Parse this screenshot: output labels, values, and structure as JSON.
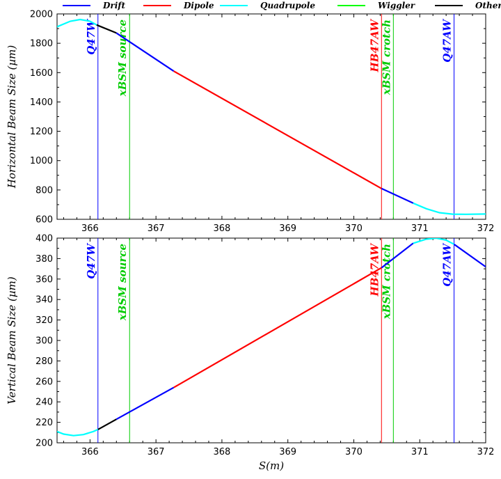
{
  "chart_data": [
    {
      "type": "line",
      "id": "top",
      "ylabel": "Horizontal Beam Size (µm)",
      "xlabel": "",
      "xlim": [
        365.5,
        372
      ],
      "ylim": [
        600,
        2000
      ],
      "xticks": [
        366,
        367,
        368,
        369,
        370,
        371,
        372
      ],
      "yticks": [
        600,
        800,
        1000,
        1200,
        1400,
        1600,
        1800,
        2000
      ],
      "legend": {
        "position": "top",
        "entries": [
          {
            "name": "Drift",
            "color": "#0000ff"
          },
          {
            "name": "Dipole",
            "color": "#ff0000"
          },
          {
            "name": "Quadrupole",
            "color": "#00ffff"
          },
          {
            "name": "Wiggler",
            "color": "#00ff00"
          },
          {
            "name": "Other",
            "color": "#000000"
          }
        ]
      },
      "segments": [
        {
          "element": "Quadrupole",
          "color": "#00ffff",
          "points": [
            [
              365.5,
              1912
            ],
            [
              365.7,
              1950
            ],
            [
              365.85,
              1962
            ],
            [
              366.0,
              1950
            ],
            [
              366.1,
              1925
            ]
          ]
        },
        {
          "element": "Other",
          "color": "#000000",
          "points": [
            [
              366.1,
              1925
            ],
            [
              366.4,
              1870
            ]
          ]
        },
        {
          "element": "Drift",
          "color": "#0000ff",
          "points": [
            [
              366.4,
              1870
            ],
            [
              367.27,
              1610
            ]
          ]
        },
        {
          "element": "Dipole",
          "color": "#ff0000",
          "points": [
            [
              367.27,
              1610
            ],
            [
              370.42,
              810
            ]
          ]
        },
        {
          "element": "Drift",
          "color": "#0000ff",
          "points": [
            [
              370.42,
              810
            ],
            [
              370.9,
              710
            ]
          ]
        },
        {
          "element": "Quadrupole",
          "color": "#00ffff",
          "points": [
            [
              370.9,
              710
            ],
            [
              371.1,
              672
            ],
            [
              371.3,
              645
            ],
            [
              371.5,
              635
            ],
            [
              371.7,
              634
            ],
            [
              372.0,
              636
            ]
          ]
        }
      ],
      "markers": [
        {
          "label": "Q47W",
          "x": 366.12,
          "color": "#0000ff"
        },
        {
          "label": "xBSM source",
          "x": 366.6,
          "color": "#00cc00"
        },
        {
          "label": "HB47AW",
          "x": 370.42,
          "color": "#ff0000"
        },
        {
          "label": "xBSM crotch",
          "x": 370.6,
          "color": "#00cc00"
        },
        {
          "label": "Q47AW",
          "x": 371.52,
          "color": "#0000ff"
        }
      ]
    },
    {
      "type": "line",
      "id": "bottom",
      "ylabel": "Vertical Beam Size (µm)",
      "xlabel": "S(m)",
      "xlim": [
        365.5,
        372
      ],
      "ylim": [
        200,
        400
      ],
      "xticks": [
        366,
        367,
        368,
        369,
        370,
        371,
        372
      ],
      "yticks": [
        200,
        220,
        240,
        260,
        280,
        300,
        320,
        340,
        360,
        380,
        400
      ],
      "segments": [
        {
          "element": "Quadrupole",
          "color": "#00ffff",
          "points": [
            [
              365.5,
              211
            ],
            [
              365.6,
              208.5
            ],
            [
              365.75,
              207
            ],
            [
              365.9,
              208
            ],
            [
              366.05,
              211
            ],
            [
              366.12,
              213
            ]
          ]
        },
        {
          "element": "Other",
          "color": "#000000",
          "points": [
            [
              366.12,
              213
            ],
            [
              366.4,
              223
            ]
          ]
        },
        {
          "element": "Drift",
          "color": "#0000ff",
          "points": [
            [
              366.4,
              223
            ],
            [
              367.27,
              254
            ]
          ]
        },
        {
          "element": "Dipole",
          "color": "#ff0000",
          "points": [
            [
              367.27,
              254
            ],
            [
              370.42,
              371
            ]
          ]
        },
        {
          "element": "Drift",
          "color": "#0000ff",
          "points": [
            [
              370.42,
              371
            ],
            [
              370.9,
              395
            ]
          ]
        },
        {
          "element": "Quadrupole",
          "color": "#00ffff",
          "points": [
            [
              370.9,
              395
            ],
            [
              371.1,
              399
            ],
            [
              371.25,
              400
            ],
            [
              371.4,
              398
            ],
            [
              371.52,
              394
            ]
          ]
        },
        {
          "element": "Drift",
          "color": "#0000ff",
          "points": [
            [
              371.52,
              394
            ],
            [
              372.0,
              372
            ]
          ]
        }
      ],
      "markers": [
        {
          "label": "Q47W",
          "x": 366.12,
          "color": "#0000ff"
        },
        {
          "label": "xBSM source",
          "x": 366.6,
          "color": "#00cc00"
        },
        {
          "label": "HB47AW",
          "x": 370.42,
          "color": "#ff0000"
        },
        {
          "label": "xBSM crotch",
          "x": 370.6,
          "color": "#00cc00"
        },
        {
          "label": "Q47AW",
          "x": 371.52,
          "color": "#0000ff"
        }
      ]
    }
  ]
}
